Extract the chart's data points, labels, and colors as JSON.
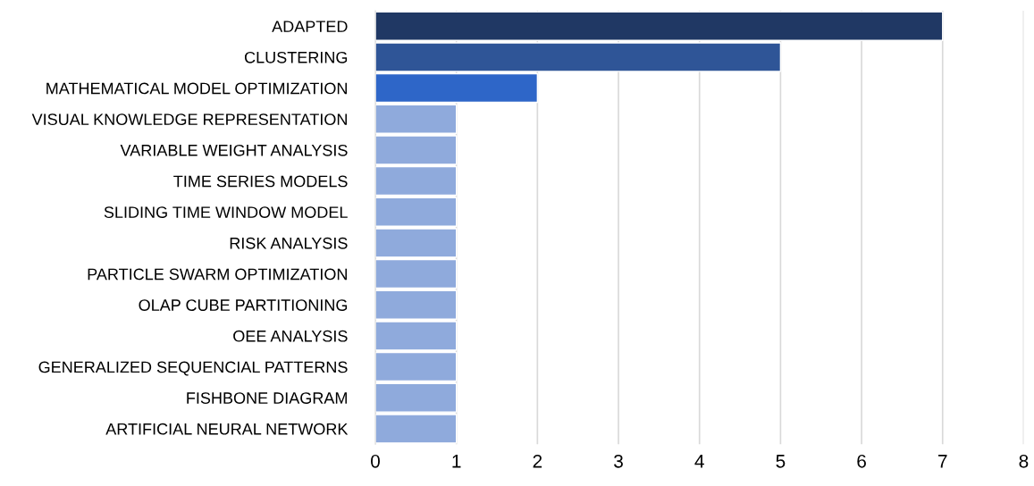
{
  "chart_data": {
    "type": "bar",
    "orientation": "horizontal",
    "categories": [
      "ADAPTED",
      "CLUSTERING",
      "MATHEMATICAL MODEL OPTIMIZATION",
      "VISUAL KNOWLEDGE REPRESENTATION",
      "VARIABLE WEIGHT ANALYSIS",
      "TIME SERIES MODELS",
      "SLIDING TIME WINDOW MODEL",
      "RISK ANALYSIS",
      "PARTICLE SWARM OPTIMIZATION",
      "OLAP CUBE PARTITIONING",
      "OEE ANALYSIS",
      "GENERALIZED SEQUENCIAL PATTERNS",
      "FISHBONE DIAGRAM",
      "ARTIFICIAL NEURAL NETWORK"
    ],
    "values": [
      7,
      5,
      2,
      1,
      1,
      1,
      1,
      1,
      1,
      1,
      1,
      1,
      1,
      1
    ],
    "colors": [
      "#203864",
      "#2f5597",
      "#2e66c8",
      "#8faadc",
      "#8faadc",
      "#8faadc",
      "#8faadc",
      "#8faadc",
      "#8faadc",
      "#8faadc",
      "#8faadc",
      "#8faadc",
      "#8faadc",
      "#8faadc"
    ],
    "xlim": [
      0,
      8
    ],
    "xticks": [
      0,
      1,
      2,
      3,
      4,
      5,
      6,
      7,
      8
    ],
    "grid": "x"
  }
}
